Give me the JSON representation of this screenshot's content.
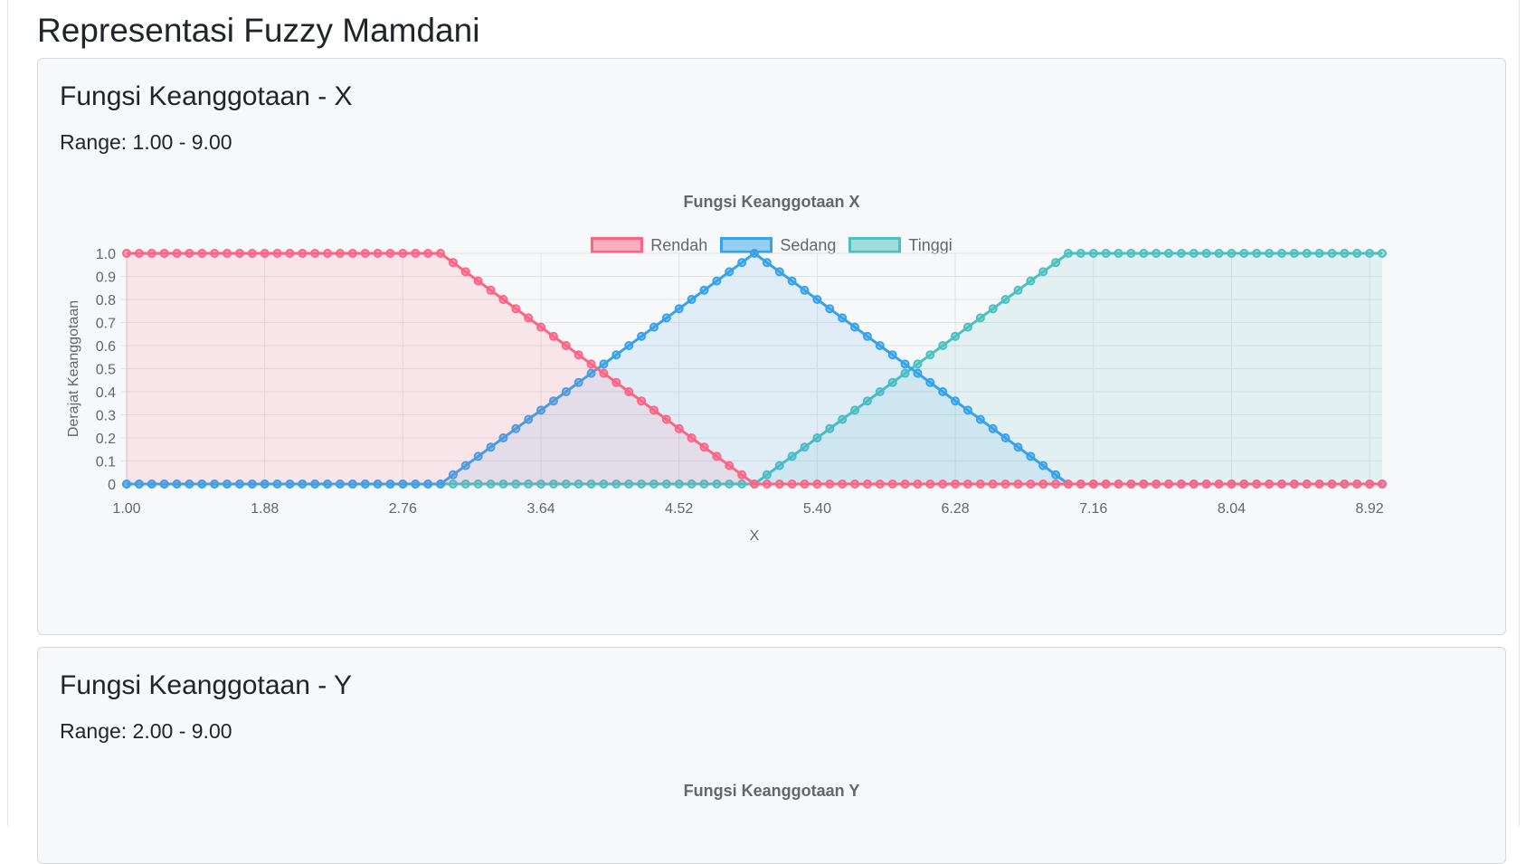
{
  "page_title": "Representasi Fuzzy Mamdani",
  "colors": {
    "rendah": "#ff6384",
    "sedang": "#36a2eb",
    "tinggi": "#4bc0c0",
    "grid": "#e2e2e2",
    "tick_text": "#666666"
  },
  "cards": [
    {
      "title": "Fungsi Keanggotaan - X",
      "range": "Range: 1.00 - 9.00"
    },
    {
      "title": "Fungsi Keanggotaan - Y",
      "range": "Range: 2.00 - 9.00"
    }
  ],
  "chart_data": [
    {
      "type": "line",
      "title": "Fungsi Keanggotaan X",
      "xlabel": "X",
      "ylabel": "Derajat Keanggotaan",
      "x_range": [
        1,
        9
      ],
      "x_step": 0.08,
      "xlim": [
        1,
        9
      ],
      "ylim": [
        0,
        1
      ],
      "x_tick_labels": [
        "1.00",
        "1.88",
        "2.76",
        "3.64",
        "4.52",
        "5.40",
        "6.28",
        "7.16",
        "8.04",
        "8.92"
      ],
      "y_tick_labels": [
        "0",
        "0.1",
        "0.2",
        "0.3",
        "0.4",
        "0.5",
        "0.6",
        "0.7",
        "0.8",
        "0.9",
        "1.0"
      ],
      "grid": true,
      "legend_position": "top",
      "series": [
        {
          "name": "Rendah",
          "kind": "trapezoid-left",
          "params": [
            3,
            5
          ],
          "color": "#ff6384"
        },
        {
          "name": "Sedang",
          "kind": "triangle",
          "params": [
            3,
            5,
            7
          ],
          "color": "#36a2eb"
        },
        {
          "name": "Tinggi",
          "kind": "trapezoid-right",
          "params": [
            5,
            7
          ],
          "color": "#4bc0c0"
        }
      ]
    },
    {
      "type": "line",
      "title": "Fungsi Keanggotaan Y"
    }
  ]
}
